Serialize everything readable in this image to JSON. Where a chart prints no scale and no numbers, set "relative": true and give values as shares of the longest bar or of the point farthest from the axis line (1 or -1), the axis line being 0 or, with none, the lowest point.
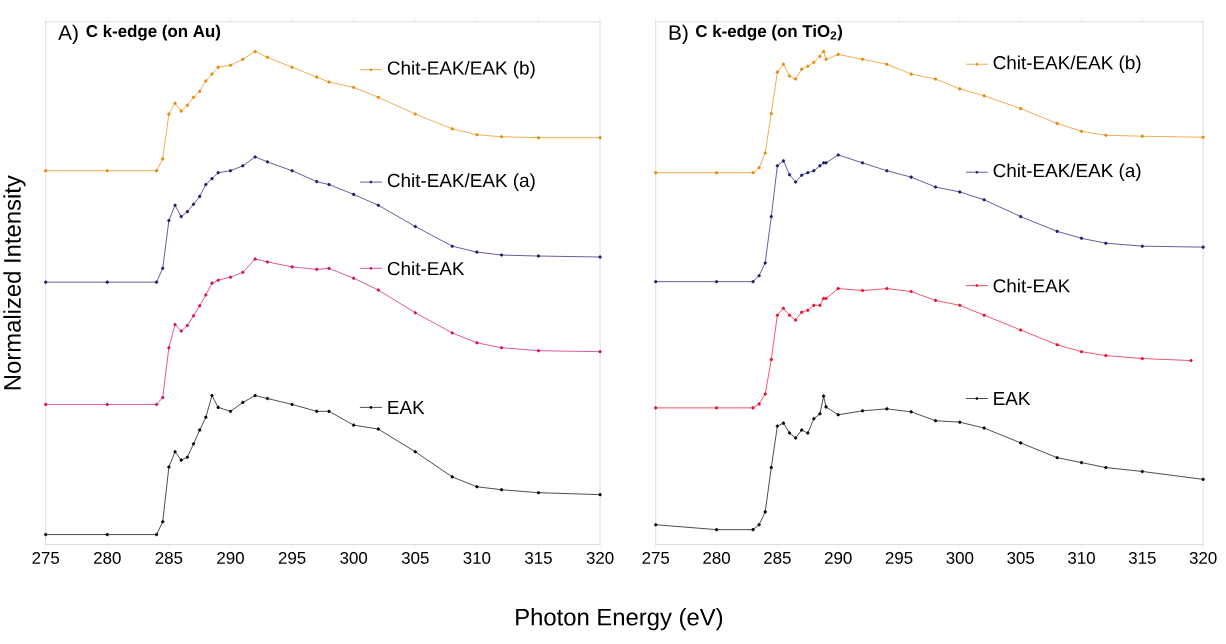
{
  "chart_data": [
    {
      "type": "line",
      "title": "C k-edge (on Au)",
      "annotations": [
        "A)"
      ],
      "xlabel": "Photon Energy (eV)",
      "ylabel": "Normalized Intensity",
      "relative": true,
      "xlim": [
        275,
        320
      ],
      "xticks": [
        275,
        280,
        285,
        290,
        295,
        300,
        305,
        310,
        315,
        320
      ],
      "tick_labels": "x",
      "legend": "top right",
      "marker": "circle",
      "line_style": "solid",
      "series": [
        {
          "name": "Chit-EAK/EAK (b)",
          "color": "#e8890c",
          "x": [
            275,
            280,
            284,
            284.5,
            285,
            285.5,
            286,
            286.5,
            287,
            287.5,
            288,
            288.5,
            289,
            290,
            291,
            292,
            293,
            295,
            297,
            298,
            300,
            302,
            305,
            308,
            310,
            312,
            315,
            320
          ],
          "values": [
            0.758,
            0.758,
            0.758,
            0.782,
            0.873,
            0.895,
            0.879,
            0.891,
            0.907,
            0.919,
            0.94,
            0.954,
            0.968,
            0.972,
            0.984,
            1,
            0.988,
            0.968,
            0.948,
            0.938,
            0.927,
            0.907,
            0.873,
            0.843,
            0.831,
            0.827,
            0.825,
            0.825
          ]
        },
        {
          "name": "Chit-EAK/EAK (a)",
          "color": "#1c1c72",
          "x": [
            275,
            280,
            284,
            284.5,
            285,
            285.5,
            286,
            286.5,
            287,
            287.5,
            288,
            288.5,
            289,
            290,
            291,
            292,
            293,
            295,
            297,
            298,
            300,
            302,
            305,
            308,
            310,
            312,
            315,
            320
          ],
          "values": [
            0.532,
            0.532,
            0.532,
            0.56,
            0.657,
            0.688,
            0.665,
            0.675,
            0.69,
            0.706,
            0.73,
            0.742,
            0.754,
            0.758,
            0.768,
            0.786,
            0.776,
            0.758,
            0.736,
            0.73,
            0.71,
            0.688,
            0.645,
            0.605,
            0.593,
            0.587,
            0.585,
            0.583
          ]
        },
        {
          "name": "Chit-EAK",
          "color": "#d0106a",
          "x": [
            275,
            280,
            284,
            284.5,
            285,
            285.5,
            286,
            286.5,
            287,
            287.5,
            288,
            288.5,
            289,
            290,
            291,
            292,
            293,
            295,
            297,
            298,
            300,
            302,
            305,
            308,
            310,
            312,
            315,
            320
          ],
          "values": [
            0.284,
            0.284,
            0.284,
            0.298,
            0.399,
            0.446,
            0.433,
            0.444,
            0.464,
            0.484,
            0.506,
            0.53,
            0.536,
            0.542,
            0.552,
            0.579,
            0.573,
            0.563,
            0.558,
            0.56,
            0.54,
            0.516,
            0.47,
            0.429,
            0.409,
            0.399,
            0.393,
            0.391
          ]
        },
        {
          "name": "EAK",
          "color": "#000000",
          "x": [
            275,
            280,
            284,
            284.5,
            285,
            285.5,
            286,
            286.5,
            287,
            287.5,
            288,
            288.5,
            289,
            290,
            291,
            292,
            293,
            295,
            297,
            298,
            300,
            302,
            305,
            308,
            310,
            312,
            315,
            320
          ],
          "values": [
            0.02,
            0.02,
            0.02,
            0.046,
            0.157,
            0.188,
            0.171,
            0.177,
            0.204,
            0.232,
            0.258,
            0.302,
            0.278,
            0.27,
            0.288,
            0.302,
            0.296,
            0.284,
            0.27,
            0.27,
            0.242,
            0.234,
            0.188,
            0.137,
            0.117,
            0.111,
            0.105,
            0.101
          ]
        }
      ]
    },
    {
      "type": "line",
      "title": "C k-edge (on TiO$_{2}$)",
      "annotations": [
        "B)"
      ],
      "relative": true,
      "xlim": [
        275,
        320
      ],
      "xticks": [
        275,
        280,
        285,
        290,
        295,
        300,
        305,
        310,
        315,
        320
      ],
      "tick_labels": "x",
      "legend": "top right",
      "marker": "circle",
      "line_style": "solid",
      "series": [
        {
          "name": "Chit-EAK/EAK (b)",
          "color": "#e8890c",
          "x": [
            275,
            280,
            283,
            283.5,
            284,
            284.5,
            285,
            285.5,
            286,
            286.5,
            287,
            287.5,
            288,
            288.5,
            288.8,
            289,
            290,
            292,
            294,
            296,
            298,
            300,
            302,
            305,
            308,
            310,
            312,
            315,
            320
          ],
          "values": [
            0.754,
            0.754,
            0.754,
            0.764,
            0.794,
            0.874,
            0.958,
            0.974,
            0.95,
            0.944,
            0.964,
            0.97,
            0.978,
            0.99,
            1,
            0.984,
            0.994,
            0.984,
            0.974,
            0.954,
            0.944,
            0.924,
            0.91,
            0.884,
            0.854,
            0.838,
            0.83,
            0.828,
            0.826
          ]
        },
        {
          "name": "Chit-EAK/EAK (a)",
          "color": "#1c1c72",
          "x": [
            275,
            280,
            283,
            283.5,
            284,
            284.5,
            285,
            285.5,
            286,
            286.5,
            287,
            287.5,
            288,
            288.5,
            288.8,
            289,
            290,
            292,
            294,
            296,
            298,
            300,
            302,
            305,
            308,
            310,
            312,
            315,
            320
          ],
          "values": [
            0.533,
            0.533,
            0.533,
            0.545,
            0.571,
            0.665,
            0.768,
            0.778,
            0.75,
            0.735,
            0.749,
            0.754,
            0.758,
            0.768,
            0.774,
            0.774,
            0.79,
            0.774,
            0.758,
            0.745,
            0.725,
            0.715,
            0.699,
            0.665,
            0.635,
            0.621,
            0.611,
            0.605,
            0.603
          ]
        },
        {
          "name": "Chit-EAK",
          "color": "#e8102e",
          "x": [
            275,
            280,
            283,
            283.5,
            284,
            284.5,
            285,
            285.5,
            286,
            286.5,
            287,
            287.5,
            288,
            288.5,
            288.8,
            289,
            290,
            292,
            294,
            296,
            298,
            300,
            302,
            305,
            308,
            310,
            312,
            315,
            319
          ],
          "values": [
            0.277,
            0.277,
            0.277,
            0.285,
            0.305,
            0.375,
            0.465,
            0.479,
            0.465,
            0.455,
            0.471,
            0.475,
            0.485,
            0.485,
            0.499,
            0.499,
            0.519,
            0.515,
            0.519,
            0.513,
            0.495,
            0.485,
            0.465,
            0.435,
            0.405,
            0.391,
            0.383,
            0.377,
            0.373
          ]
        },
        {
          "name": "EAK",
          "color": "#000000",
          "x": [
            275,
            280,
            283,
            283.5,
            284,
            284.5,
            285,
            285.5,
            286,
            286.5,
            287,
            287.5,
            288,
            288.5,
            288.8,
            289,
            290,
            292,
            294,
            296,
            298,
            300,
            302,
            305,
            308,
            310,
            312,
            315,
            320
          ],
          "values": [
            0.04,
            0.03,
            0.03,
            0.04,
            0.066,
            0.156,
            0.24,
            0.246,
            0.226,
            0.216,
            0.232,
            0.226,
            0.255,
            0.265,
            0.301,
            0.279,
            0.263,
            0.271,
            0.275,
            0.269,
            0.251,
            0.248,
            0.236,
            0.206,
            0.176,
            0.166,
            0.156,
            0.148,
            0.132
          ]
        }
      ]
    }
  ]
}
